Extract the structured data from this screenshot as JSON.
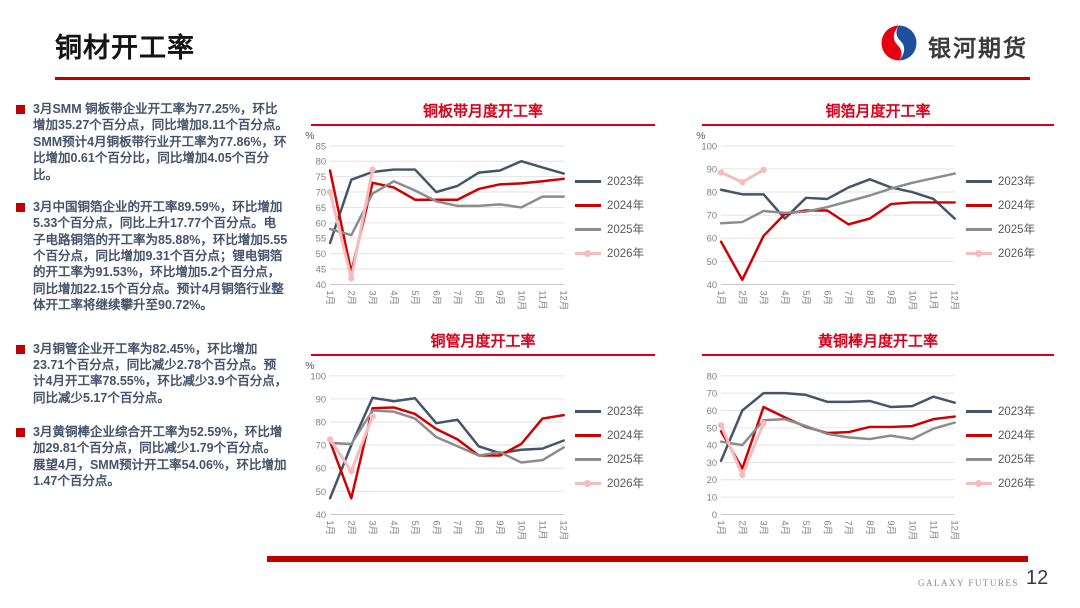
{
  "header": {
    "title": "铜材开工率",
    "logo_text": "银河期货"
  },
  "bullets": [
    "3月SMM 铜板带企业开工率为77.25%，环比增加35.27个百分点，同比增加8.11个百分点。SMM预计4月铜板带行业开工率为77.86%，环比增加0.61个百分比，同比增加4.05个百分比。",
    "3月中国铜箔企业的开工率89.59%，环比增加5.33个百分点，同比上升17.77个百分点。电子电路铜箔的开工率为85.88%，环比增加5.55个百分点，同比增加9.31个百分点；锂电铜箔的开工率为91.53%，环比增加5.2个百分点，同比增加22.15个百分点。预计4月铜箔行业整体开工率将继续攀升至90.72%。",
    "3月铜管企业开工率为82.45%，环比增加23.71个百分点，同比减少2.78个百分点。预计4月开工率78.55%，环比减少3.9个百分点，同比减少5.17个百分点。",
    "3月黄铜棒企业综合开工率为52.59%，环比增加29.81个百分点，同比减少1.79个百分点。 展望4月，SMM预计开工率54.06%，环比增加1.47个百分点。"
  ],
  "colors": {
    "accent_red": "#C00000",
    "chart_title_red": "#D9001B",
    "series_2023": "#44546A",
    "series_2024": "#D00000",
    "series_2025": "#8C8C8C",
    "series_2026": "#F5BCBE",
    "body_text": "#44546A"
  },
  "chart_data": [
    {
      "type": "line",
      "title": "铜板带月度开工率",
      "ylabel": "%",
      "ylim": [
        40,
        85
      ],
      "ytick_step": 5,
      "grid": true,
      "legend_position": "right",
      "categories": [
        "1月",
        "2月",
        "3月",
        "4月",
        "5月",
        "6月",
        "7月",
        "8月",
        "9月",
        "10月",
        "11月",
        "12月"
      ],
      "series": [
        {
          "name": "2023年",
          "color": "#44546A",
          "values": [
            53.5,
            74,
            76.5,
            77.3,
            77.3,
            70,
            72,
            76.3,
            77,
            80,
            78,
            76
          ]
        },
        {
          "name": "2024年",
          "color": "#D00000",
          "values": [
            77,
            44,
            73,
            71.5,
            67.5,
            67.5,
            67.5,
            71,
            72.5,
            72.8,
            73.5,
            74.3
          ]
        },
        {
          "name": "2025年",
          "color": "#8C8C8C",
          "values": [
            58,
            56,
            69.5,
            73.5,
            70.5,
            67,
            65.5,
            65.5,
            66,
            65,
            68.5,
            68.5
          ]
        },
        {
          "name": "2026年",
          "color": "#F5BCBE",
          "marker": true,
          "values": [
            70,
            41.98,
            77.25,
            null,
            null,
            null,
            null,
            null,
            null,
            null,
            null,
            null
          ]
        }
      ]
    },
    {
      "type": "line",
      "title": "铜箔月度开工率",
      "ylabel": "%",
      "ylim": [
        40,
        100
      ],
      "ytick_step": 10,
      "grid": true,
      "legend_position": "right",
      "categories": [
        "1月",
        "2月",
        "3月",
        "4月",
        "5月",
        "6月",
        "7月",
        "8月",
        "9月",
        "10月",
        "11月",
        "12月"
      ],
      "series": [
        {
          "name": "2023年",
          "color": "#44546A",
          "values": [
            81,
            79,
            79,
            68.5,
            77.5,
            77,
            82,
            85.5,
            82,
            80,
            77,
            68.5
          ]
        },
        {
          "name": "2024年",
          "color": "#D00000",
          "values": [
            58.5,
            42,
            61,
            70.5,
            72,
            72,
            66,
            68.5,
            74.8,
            75.5,
            75.5,
            75.5
          ]
        },
        {
          "name": "2025年",
          "color": "#8C8C8C",
          "values": [
            66.5,
            67,
            71.8,
            71,
            71.5,
            73.5,
            76,
            78.5,
            81.5,
            84,
            86,
            88
          ]
        },
        {
          "name": "2026年",
          "color": "#F5BCBE",
          "marker": true,
          "values": [
            88.5,
            84.26,
            89.59,
            null,
            null,
            null,
            null,
            null,
            null,
            null,
            null,
            null
          ]
        }
      ]
    },
    {
      "type": "line",
      "title": "铜管月度开工率",
      "ylabel": "%",
      "ylim": [
        40,
        100
      ],
      "ytick_step": 10,
      "grid": true,
      "legend_position": "right",
      "categories": [
        "1月",
        "2月",
        "3月",
        "4月",
        "5月",
        "6月",
        "7月",
        "8月",
        "9月",
        "10月",
        "11月",
        "12月"
      ],
      "series": [
        {
          "name": "2023年",
          "color": "#44546A",
          "values": [
            47,
            70,
            90.5,
            89,
            90.3,
            79.5,
            81,
            69.5,
            66.5,
            68,
            68.5,
            72
          ]
        },
        {
          "name": "2024年",
          "color": "#D00000",
          "values": [
            71.5,
            47,
            86,
            86.3,
            83.5,
            77,
            72.5,
            65.5,
            65.5,
            70.5,
            81.5,
            83
          ]
        },
        {
          "name": "2025年",
          "color": "#8C8C8C",
          "values": [
            71,
            70.5,
            85,
            84.5,
            81.5,
            73.5,
            69.5,
            65.5,
            67,
            62.5,
            63.5,
            69
          ]
        },
        {
          "name": "2026年",
          "color": "#F5BCBE",
          "marker": true,
          "values": [
            72.5,
            58.74,
            82.45,
            null,
            null,
            null,
            null,
            null,
            null,
            null,
            null,
            null
          ]
        }
      ]
    },
    {
      "type": "line",
      "title": "黄铜棒月度开工率",
      "ylabel": "",
      "ylim": [
        0,
        80
      ],
      "ytick_step": 10,
      "grid": true,
      "legend_position": "right",
      "categories": [
        "1月",
        "2月",
        "3月",
        "4月",
        "5月",
        "6月",
        "7月",
        "8月",
        "9月",
        "10月",
        "11月",
        "12月"
      ],
      "series": [
        {
          "name": "2023年",
          "color": "#44546A",
          "values": [
            31,
            60,
            70,
            70,
            69,
            65,
            65,
            65.5,
            62,
            62.5,
            68,
            64.5
          ]
        },
        {
          "name": "2024年",
          "color": "#D00000",
          "values": [
            48,
            26.5,
            62,
            56,
            50.5,
            47,
            47.5,
            50.5,
            50.5,
            51,
            55,
            56.5
          ]
        },
        {
          "name": "2025年",
          "color": "#8C8C8C",
          "values": [
            42,
            40,
            54.38,
            55,
            51,
            46.5,
            44.5,
            43.5,
            45.5,
            43.5,
            49.5,
            53
          ]
        },
        {
          "name": "2026年",
          "color": "#F5BCBE",
          "marker": true,
          "values": [
            51.5,
            22.78,
            52.59,
            null,
            null,
            null,
            null,
            null,
            null,
            null,
            null,
            null
          ]
        }
      ]
    }
  ],
  "footer": {
    "brand": "GALAXY FUTURES",
    "page": "12"
  }
}
